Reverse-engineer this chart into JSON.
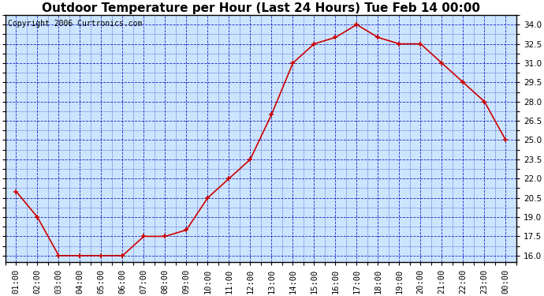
{
  "title": "Outdoor Temperature per Hour (Last 24 Hours) Tue Feb 14 00:00",
  "copyright_text": "Copyright 2006 Curtronics.com",
  "hours": [
    "01:00",
    "02:00",
    "03:00",
    "04:00",
    "05:00",
    "06:00",
    "07:00",
    "08:00",
    "09:00",
    "10:00",
    "11:00",
    "12:00",
    "13:00",
    "14:00",
    "15:00",
    "16:00",
    "17:00",
    "18:00",
    "19:00",
    "20:00",
    "21:00",
    "22:00",
    "23:00",
    "00:00"
  ],
  "temps": [
    21.0,
    19.0,
    16.0,
    16.0,
    16.0,
    16.0,
    17.5,
    17.5,
    18.0,
    20.5,
    22.0,
    23.5,
    27.0,
    31.0,
    32.5,
    33.0,
    34.0,
    33.0,
    32.5,
    32.5,
    31.0,
    29.5,
    28.0,
    25.0
  ],
  "line_color": "#cc0000",
  "marker_color": "#cc0000",
  "bg_color": "#cce5ff",
  "grid_color": "#0000bb",
  "title_fontsize": 11,
  "ylim": [
    15.5,
    34.75
  ],
  "yticks": [
    16.0,
    17.5,
    19.0,
    20.5,
    22.0,
    23.5,
    25.0,
    26.5,
    28.0,
    29.5,
    31.0,
    32.5,
    34.0
  ],
  "border_color": "#000000",
  "tick_label_fontsize": 7.5,
  "copyright_fontsize": 7
}
